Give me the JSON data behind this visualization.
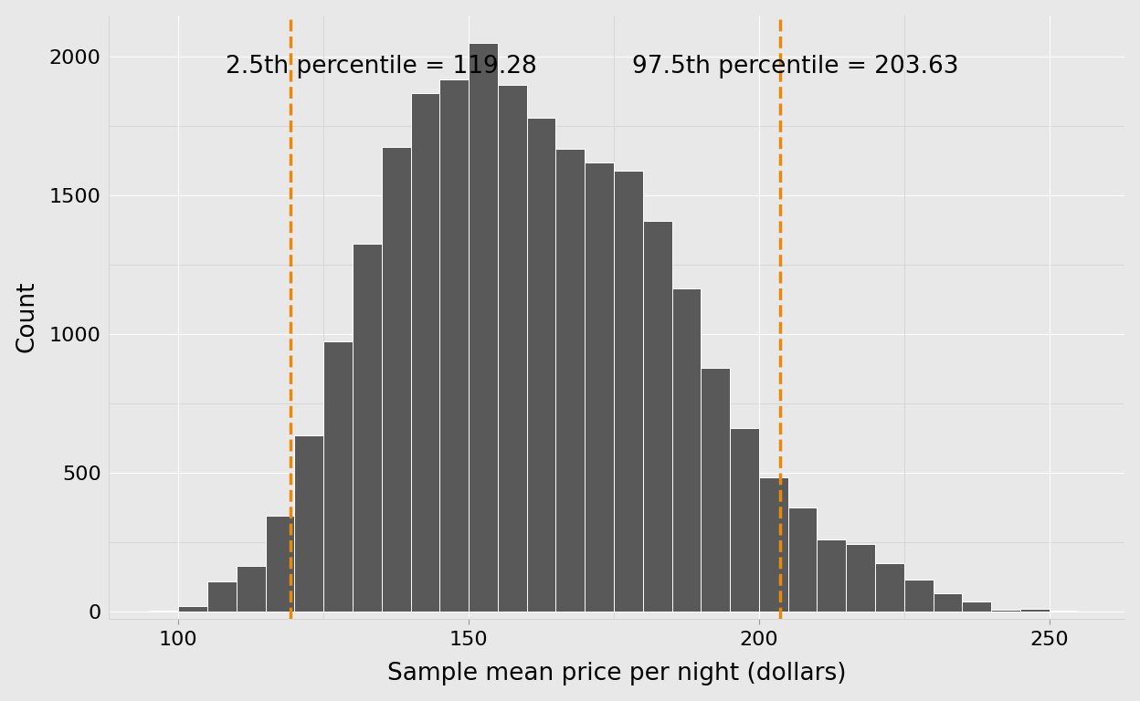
{
  "xlabel": "Sample mean price per night (dollars)",
  "ylabel": "Count",
  "lower_percentile_label": "2.5th percentile = 119.28",
  "upper_percentile_label": "97.5th percentile = 203.63",
  "lower_vline": 119.28,
  "upper_vline": 203.63,
  "vline_color": "#E8890C",
  "bar_color": "#595959",
  "bar_edge_color": "#FFFFFF",
  "background_color": "#E8E8E8",
  "panel_bg": "#E8E8E8",
  "minor_grid_color": "#D8D8D8",
  "major_grid_color": "#FFFFFF",
  "xlim": [
    88,
    263
  ],
  "ylim": [
    -25,
    2150
  ],
  "xticks": [
    100,
    150,
    200,
    250
  ],
  "yticks": [
    0,
    500,
    1000,
    1500,
    2000
  ],
  "bin_edges": [
    95,
    100,
    105,
    110,
    115,
    120,
    125,
    130,
    135,
    140,
    145,
    150,
    155,
    160,
    165,
    170,
    175,
    180,
    185,
    190,
    195,
    200,
    205,
    210,
    215,
    220,
    225,
    230,
    235,
    240,
    245,
    250,
    255
  ],
  "bar_heights": [
    3,
    20,
    110,
    165,
    345,
    635,
    975,
    1325,
    1675,
    1870,
    1920,
    2050,
    1900,
    1780,
    1670,
    1620,
    1590,
    1410,
    1165,
    880,
    660,
    485,
    375,
    260,
    245,
    175,
    115,
    65,
    35,
    5,
    10,
    3
  ],
  "annotation_fontsize": 19,
  "axis_label_fontsize": 19,
  "tick_fontsize": 16
}
